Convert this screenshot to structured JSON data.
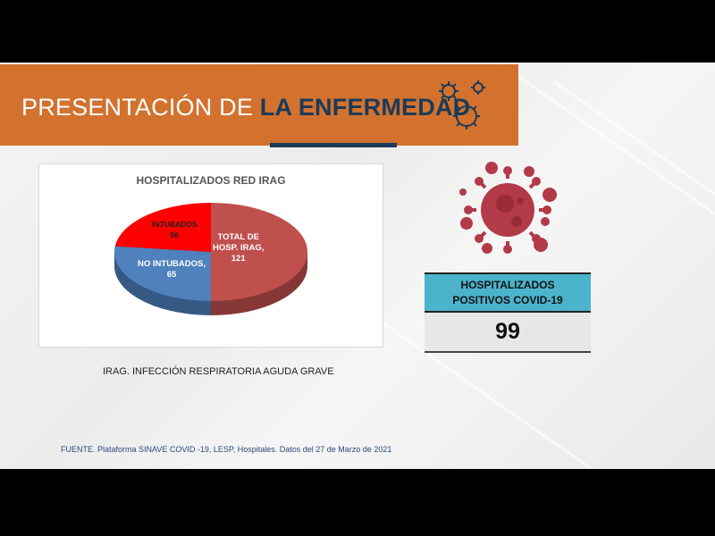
{
  "header": {
    "title_light": "PRESENTACIÓN DE ",
    "title_bold": "LA ENFERMEDAD",
    "icon": "virus-icon"
  },
  "colors": {
    "header": "#d2722e",
    "navy": "#1c3a5a",
    "kpi_header": "#4bb3cc",
    "virus": "#b33a48"
  },
  "chart_data": {
    "type": "pie",
    "title": "HOSPITALIZADOS RED IRAG",
    "three_d": true,
    "slices": [
      {
        "name": "TOTAL DE HOSP. IRAG",
        "value": 121,
        "color": "#c0504d",
        "label_lines": [
          "TOTAL DE",
          "HOSP. IRAG,",
          "121"
        ]
      },
      {
        "name": "NO INTUBADOS",
        "value": 65,
        "color": "#4f81bd",
        "label_lines": [
          "NO INTUBADOS,",
          "65"
        ]
      },
      {
        "name": "INTUBADOS",
        "value": 56,
        "color": "#ff0000",
        "label_lines": [
          "INTUBADOS",
          "56"
        ]
      }
    ]
  },
  "note": "IRAG. INFECCIÓN RESPIRATORIA AGUDA GRAVE",
  "kpi": {
    "line1": "HOSPITALIZADOS",
    "line2": "POSITIVOS COVID-19",
    "value": "99"
  },
  "source": "FUENTE. Plataforma SINAVE COVID -19, LESP, Hospitales. Datos del 27 de Marzo de 2021"
}
